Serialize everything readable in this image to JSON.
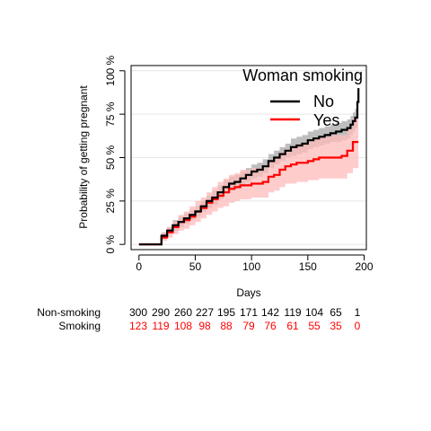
{
  "chart_data": {
    "type": "line",
    "title": "",
    "xlabel": "Days",
    "ylabel": "Probability of getting pregnant",
    "xlim": [
      -7,
      202
    ],
    "ylim": [
      -0.03,
      1.03
    ],
    "x_ticks": [
      0,
      50,
      100,
      150,
      200
    ],
    "y_ticks": [
      0,
      0.25,
      0.5,
      0.75,
      1.0
    ],
    "y_tick_labels": [
      "0 %",
      "25 %",
      "50 %",
      "75 %",
      "100 %"
    ],
    "grid": true,
    "legend": {
      "title": "Woman smoking",
      "position": "top-right"
    },
    "series": [
      {
        "name": "No",
        "color": "#000000",
        "band_color": "#bebebe",
        "x": [
          0,
          16,
          20,
          25,
          30,
          35,
          40,
          45,
          50,
          55,
          60,
          65,
          70,
          75,
          80,
          85,
          90,
          95,
          100,
          105,
          110,
          115,
          120,
          125,
          130,
          135,
          140,
          145,
          150,
          155,
          160,
          165,
          170,
          175,
          180,
          185,
          188,
          190,
          192,
          194,
          195
        ],
        "y": [
          0,
          0,
          0.05,
          0.08,
          0.11,
          0.13,
          0.15,
          0.17,
          0.19,
          0.22,
          0.25,
          0.27,
          0.3,
          0.33,
          0.35,
          0.36,
          0.38,
          0.4,
          0.42,
          0.43,
          0.45,
          0.48,
          0.5,
          0.52,
          0.54,
          0.56,
          0.57,
          0.58,
          0.6,
          0.61,
          0.62,
          0.63,
          0.64,
          0.65,
          0.66,
          0.67,
          0.69,
          0.71,
          0.73,
          0.82,
          0.9
        ],
        "lower": [
          0,
          0,
          0.03,
          0.06,
          0.08,
          0.1,
          0.12,
          0.14,
          0.16,
          0.19,
          0.21,
          0.23,
          0.26,
          0.29,
          0.31,
          0.32,
          0.34,
          0.36,
          0.38,
          0.39,
          0.41,
          0.44,
          0.46,
          0.48,
          0.5,
          0.51,
          0.52,
          0.53,
          0.55,
          0.56,
          0.57,
          0.58,
          0.59,
          0.59,
          0.6,
          0.61,
          0.63,
          0.65,
          0.67,
          0.75,
          0.82
        ],
        "upper": [
          0,
          0,
          0.07,
          0.1,
          0.14,
          0.16,
          0.18,
          0.2,
          0.22,
          0.25,
          0.28,
          0.31,
          0.34,
          0.37,
          0.39,
          0.4,
          0.42,
          0.44,
          0.46,
          0.47,
          0.49,
          0.52,
          0.54,
          0.56,
          0.58,
          0.61,
          0.62,
          0.63,
          0.65,
          0.66,
          0.67,
          0.68,
          0.69,
          0.7,
          0.71,
          0.72,
          0.74,
          0.76,
          0.78,
          0.88,
          0.96
        ]
      },
      {
        "name": "Yes",
        "color": "#ff0000",
        "band_color": "#ffbbbb",
        "x": [
          0,
          16,
          20,
          25,
          30,
          35,
          40,
          45,
          50,
          55,
          60,
          65,
          70,
          75,
          80,
          85,
          90,
          100,
          110,
          115,
          120,
          125,
          130,
          135,
          140,
          150,
          155,
          160,
          170,
          180,
          185,
          190,
          195
        ],
        "y": [
          0,
          0,
          0.04,
          0.07,
          0.1,
          0.13,
          0.14,
          0.16,
          0.19,
          0.21,
          0.24,
          0.26,
          0.28,
          0.3,
          0.32,
          0.33,
          0.34,
          0.35,
          0.36,
          0.39,
          0.4,
          0.43,
          0.45,
          0.46,
          0.47,
          0.48,
          0.49,
          0.5,
          0.5,
          0.51,
          0.54,
          0.59,
          0.59
        ],
        "lower": [
          0,
          0,
          0.02,
          0.04,
          0.06,
          0.08,
          0.09,
          0.11,
          0.13,
          0.15,
          0.17,
          0.19,
          0.21,
          0.22,
          0.24,
          0.25,
          0.26,
          0.27,
          0.27,
          0.3,
          0.31,
          0.33,
          0.35,
          0.35,
          0.36,
          0.37,
          0.37,
          0.38,
          0.38,
          0.38,
          0.41,
          0.44,
          0.44
        ],
        "upper": [
          0,
          0,
          0.07,
          0.1,
          0.13,
          0.17,
          0.19,
          0.22,
          0.25,
          0.27,
          0.3,
          0.33,
          0.36,
          0.38,
          0.4,
          0.41,
          0.43,
          0.44,
          0.45,
          0.48,
          0.5,
          0.53,
          0.55,
          0.56,
          0.58,
          0.6,
          0.61,
          0.62,
          0.63,
          0.63,
          0.67,
          0.73,
          0.73
        ]
      }
    ],
    "risk_table": {
      "times": [
        0,
        20,
        40,
        60,
        80,
        100,
        120,
        140,
        160,
        180,
        200
      ],
      "rows": [
        {
          "label": "Non-smoking",
          "color": "#000000",
          "values": [
            "300",
            "290",
            "260",
            "227",
            "195",
            "171",
            "142",
            "119",
            "104",
            "65",
            "1"
          ]
        },
        {
          "label": "Smoking",
          "color": "#ff0000",
          "values": [
            "123",
            "119",
            "108",
            "98",
            "88",
            "79",
            "76",
            "61",
            "55",
            "35",
            "0"
          ]
        }
      ]
    }
  }
}
